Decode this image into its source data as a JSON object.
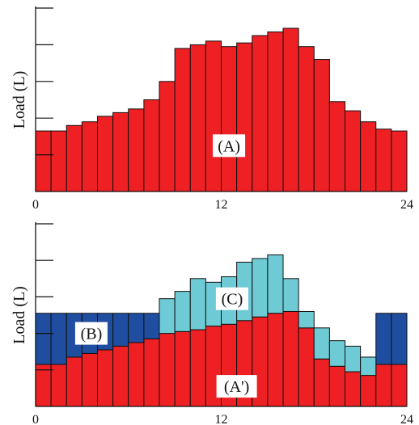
{
  "chart_data": [
    {
      "type": "bar",
      "title": "",
      "ylabel": "Load (L)",
      "xlabel": "",
      "xticks": [
        "0",
        "12",
        "24"
      ],
      "x": [
        0,
        1,
        2,
        3,
        4,
        5,
        6,
        7,
        8,
        9,
        10,
        11,
        12,
        13,
        14,
        15,
        16,
        17,
        18,
        19,
        20,
        21,
        22,
        23
      ],
      "ylim": [
        0,
        100
      ],
      "yticks_count": 5,
      "series": [
        {
          "values": [
            33,
            33,
            36,
            38,
            41,
            43,
            45,
            50,
            60,
            78,
            80,
            82,
            79,
            81,
            85,
            87,
            89,
            79,
            72,
            49,
            44,
            38,
            34,
            33
          ],
          "color": "#ee2024"
        }
      ],
      "annotations": [
        {
          "text": "(A)",
          "x": 12.5,
          "y": 25
        }
      ]
    },
    {
      "type": "bar",
      "stacked": true,
      "title": "",
      "ylabel": "Load (L)",
      "xlabel": "",
      "xticks": [
        "0",
        "12",
        "24"
      ],
      "x": [
        0,
        1,
        2,
        3,
        4,
        5,
        6,
        7,
        8,
        9,
        10,
        11,
        12,
        13,
        14,
        15,
        16,
        17,
        18,
        19,
        20,
        21,
        22,
        23
      ],
      "ylim": [
        0,
        100
      ],
      "yticks_count": 5,
      "series": [
        {
          "values": [
            23,
            23,
            27,
            29,
            31,
            33,
            35,
            37,
            40,
            41,
            42,
            44,
            45,
            47,
            49,
            51,
            52,
            43,
            26,
            22,
            19,
            17,
            23,
            23
          ],
          "color": "#ee2024"
        },
        {
          "values": [
            28,
            28,
            24,
            22,
            20,
            18,
            16,
            14,
            0,
            0,
            0,
            0,
            0,
            0,
            0,
            0,
            0,
            0,
            0,
            0,
            0,
            0,
            28,
            28
          ],
          "color": "#1f4ea0"
        },
        {
          "values": [
            0,
            0,
            0,
            0,
            0,
            0,
            0,
            0,
            19,
            22,
            28,
            24,
            26,
            32,
            32,
            32,
            18,
            9,
            17,
            14,
            14,
            10,
            0,
            0
          ],
          "color": "#6ecbd6"
        }
      ],
      "annotations": [
        {
          "text": "(B)",
          "x": 3.6,
          "y": 40
        },
        {
          "text": "(C)",
          "x": 12.7,
          "y": 59
        },
        {
          "text": "(A')",
          "x": 13.0,
          "y": 11
        }
      ]
    }
  ]
}
